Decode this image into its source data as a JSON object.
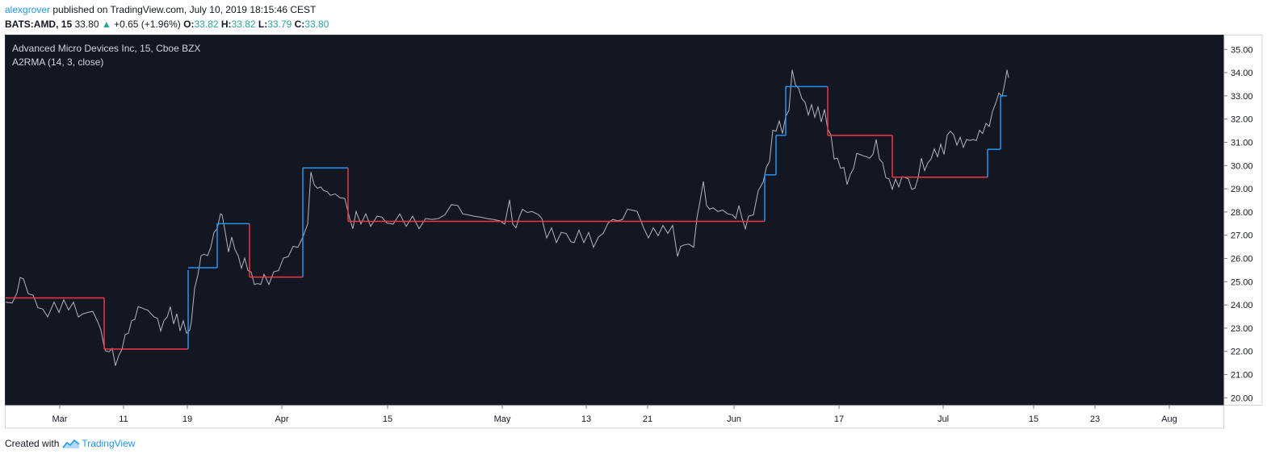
{
  "header": {
    "user": "alexgrover",
    "published": "published on TradingView.com, July 10, 2019 18:15:46 CEST"
  },
  "ticker": {
    "symbol": "BATS:AMD, 15",
    "last": "33.80",
    "change": "+0.65 (+1.96%)",
    "o_label": "O:",
    "o": "33.82",
    "h_label": "H:",
    "h": "33.82",
    "l_label": "L:",
    "l": "33.79",
    "c_label": "C:",
    "c": "33.80"
  },
  "chart_data": {
    "type": "line",
    "title": "Advanced Micro Devices Inc, 15, Cboe BZX",
    "indicator_label": "A2RMA (14, 3, close)",
    "ylim": [
      19.7,
      35.6
    ],
    "y_ticks": [
      "35.00",
      "34.00",
      "33.00",
      "32.00",
      "31.00",
      "30.00",
      "29.00",
      "28.00",
      "27.00",
      "26.00",
      "25.00",
      "24.00",
      "23.00",
      "22.00",
      "21.00",
      "20.00"
    ],
    "x_ticks": [
      "Mar",
      "11",
      "19",
      "Apr",
      "15",
      "May",
      "13",
      "21",
      "Jun",
      "17",
      "Jul",
      "15",
      "23",
      "Aug"
    ],
    "colors": {
      "background": "#131722",
      "price": "#b2b5be",
      "up": "#2196f3",
      "down": "#f23645",
      "up_text": "#26a69a"
    },
    "price_series": [
      [
        0,
        24.0
      ],
      [
        8,
        24.2
      ],
      [
        14,
        24.4
      ],
      [
        18,
        25.3
      ],
      [
        22,
        25.0
      ],
      [
        28,
        24.6
      ],
      [
        34,
        24.3
      ],
      [
        40,
        24.0
      ],
      [
        46,
        23.7
      ],
      [
        52,
        23.6
      ],
      [
        60,
        24.0
      ],
      [
        66,
        23.8
      ],
      [
        72,
        24.1
      ],
      [
        78,
        23.9
      ],
      [
        84,
        24.0
      ],
      [
        90,
        23.6
      ],
      [
        96,
        23.5
      ],
      [
        102,
        23.8
      ],
      [
        108,
        23.6
      ],
      [
        114,
        23.4
      ],
      [
        118,
        22.8
      ],
      [
        122,
        22.3
      ],
      [
        124,
        21.9
      ],
      [
        128,
        22.1
      ],
      [
        132,
        22.0
      ],
      [
        136,
        21.5
      ],
      [
        140,
        21.7
      ],
      [
        144,
        22.2
      ],
      [
        148,
        22.6
      ],
      [
        152,
        22.9
      ],
      [
        156,
        23.2
      ],
      [
        160,
        23.5
      ],
      [
        164,
        23.8
      ],
      [
        168,
        24.0
      ],
      [
        172,
        23.7
      ],
      [
        176,
        23.9
      ],
      [
        180,
        23.5
      ],
      [
        184,
        23.6
      ],
      [
        188,
        23.3
      ],
      [
        192,
        23.0
      ],
      [
        196,
        23.2
      ],
      [
        200,
        23.6
      ],
      [
        204,
        23.8
      ],
      [
        208,
        23.3
      ],
      [
        212,
        23.5
      ],
      [
        216,
        23.0
      ],
      [
        220,
        23.2
      ],
      [
        224,
        22.9
      ],
      [
        228,
        22.8
      ],
      [
        230,
        23.4
      ],
      [
        234,
        24.6
      ],
      [
        238,
        25.4
      ],
      [
        242,
        26.0
      ],
      [
        246,
        26.3
      ],
      [
        250,
        26.0
      ],
      [
        254,
        26.6
      ],
      [
        258,
        27.0
      ],
      [
        262,
        27.4
      ],
      [
        266,
        27.8
      ],
      [
        268,
        28.0
      ],
      [
        272,
        27.0
      ],
      [
        276,
        26.4
      ],
      [
        280,
        26.8
      ],
      [
        284,
        26.5
      ],
      [
        288,
        26.0
      ],
      [
        292,
        25.7
      ],
      [
        296,
        25.9
      ],
      [
        300,
        25.6
      ],
      [
        304,
        25.3
      ],
      [
        308,
        25.0
      ],
      [
        312,
        24.8
      ],
      [
        316,
        25.0
      ],
      [
        320,
        25.2
      ],
      [
        326,
        25.0
      ],
      [
        332,
        25.3
      ],
      [
        338,
        25.6
      ],
      [
        344,
        25.9
      ],
      [
        350,
        26.2
      ],
      [
        356,
        26.4
      ],
      [
        362,
        26.6
      ],
      [
        368,
        26.8
      ],
      [
        374,
        27.6
      ],
      [
        378,
        29.6
      ],
      [
        382,
        29.3
      ],
      [
        386,
        28.9
      ],
      [
        390,
        29.2
      ],
      [
        394,
        28.8
      ],
      [
        398,
        29.0
      ],
      [
        402,
        28.6
      ],
      [
        408,
        28.9
      ],
      [
        414,
        28.5
      ],
      [
        420,
        28.7
      ],
      [
        426,
        27.6
      ],
      [
        430,
        27.4
      ],
      [
        434,
        27.9
      ],
      [
        440,
        27.6
      ],
      [
        446,
        27.8
      ],
      [
        452,
        27.5
      ],
      [
        460,
        27.7
      ],
      [
        466,
        27.9
      ],
      [
        472,
        27.4
      ],
      [
        480,
        27.6
      ],
      [
        488,
        27.8
      ],
      [
        496,
        27.5
      ],
      [
        504,
        27.7
      ],
      [
        512,
        27.4
      ],
      [
        520,
        27.6
      ],
      [
        528,
        27.8
      ],
      [
        536,
        27.6
      ],
      [
        544,
        28.0
      ],
      [
        552,
        28.2
      ],
      [
        560,
        28.4
      ],
      [
        566,
        27.8
      ],
      [
        572,
        28.0
      ],
      [
        580,
        27.7
      ],
      [
        588,
        27.9
      ],
      [
        596,
        27.6
      ],
      [
        604,
        27.8
      ],
      [
        612,
        27.5
      ],
      [
        618,
        27.6
      ],
      [
        624,
        28.4
      ],
      [
        628,
        27.6
      ],
      [
        632,
        27.2
      ],
      [
        636,
        27.9
      ],
      [
        640,
        28.0
      ],
      [
        646,
        28.1
      ],
      [
        652,
        27.9
      ],
      [
        660,
        28.0
      ],
      [
        664,
        27.6
      ],
      [
        670,
        27.0
      ],
      [
        676,
        27.2
      ],
      [
        682,
        26.8
      ],
      [
        688,
        27.0
      ],
      [
        694,
        27.2
      ],
      [
        700,
        26.6
      ],
      [
        704,
        26.8
      ],
      [
        710,
        27.1
      ],
      [
        716,
        26.8
      ],
      [
        722,
        27.0
      ],
      [
        728,
        26.6
      ],
      [
        734,
        26.8
      ],
      [
        740,
        27.2
      ],
      [
        746,
        27.4
      ],
      [
        752,
        27.8
      ],
      [
        758,
        27.5
      ],
      [
        764,
        27.8
      ],
      [
        770,
        28.0
      ],
      [
        776,
        28.2
      ],
      [
        782,
        27.9
      ],
      [
        786,
        27.8
      ],
      [
        790,
        27.2
      ],
      [
        796,
        27.0
      ],
      [
        802,
        27.2
      ],
      [
        808,
        27.1
      ],
      [
        814,
        27.3
      ],
      [
        820,
        27.2
      ],
      [
        826,
        27.3
      ],
      [
        832,
        26.2
      ],
      [
        836,
        26.4
      ],
      [
        840,
        26.7
      ],
      [
        846,
        26.5
      ],
      [
        852,
        26.6
      ],
      [
        856,
        27.6
      ],
      [
        860,
        28.6
      ],
      [
        864,
        29.2
      ],
      [
        868,
        28.4
      ],
      [
        872,
        28.0
      ],
      [
        876,
        28.3
      ],
      [
        882,
        27.9
      ],
      [
        888,
        28.2
      ],
      [
        894,
        27.8
      ],
      [
        900,
        28.0
      ],
      [
        904,
        27.6
      ],
      [
        908,
        28.4
      ],
      [
        912,
        27.6
      ],
      [
        916,
        27.4
      ],
      [
        920,
        27.7
      ],
      [
        926,
        28.0
      ],
      [
        932,
        28.8
      ],
      [
        938,
        29.4
      ],
      [
        942,
        29.8
      ],
      [
        946,
        30.3
      ],
      [
        950,
        31.4
      ],
      [
        954,
        31.6
      ],
      [
        958,
        31.8
      ],
      [
        962,
        31.5
      ],
      [
        966,
        32.0
      ],
      [
        970,
        32.5
      ],
      [
        974,
        34.0
      ],
      [
        978,
        33.6
      ],
      [
        982,
        33.2
      ],
      [
        986,
        33.0
      ],
      [
        990,
        32.6
      ],
      [
        994,
        32.3
      ],
      [
        998,
        32.5
      ],
      [
        1002,
        32.2
      ],
      [
        1006,
        32.4
      ],
      [
        1010,
        32.0
      ],
      [
        1014,
        32.3
      ],
      [
        1018,
        31.7
      ],
      [
        1022,
        31.2
      ],
      [
        1026,
        30.4
      ],
      [
        1030,
        30.2
      ],
      [
        1034,
        30.0
      ],
      [
        1038,
        29.8
      ],
      [
        1042,
        29.3
      ],
      [
        1046,
        29.5
      ],
      [
        1050,
        30.0
      ],
      [
        1054,
        30.4
      ],
      [
        1058,
        30.6
      ],
      [
        1062,
        30.3
      ],
      [
        1066,
        30.5
      ],
      [
        1070,
        30.2
      ],
      [
        1074,
        30.6
      ],
      [
        1078,
        31.0
      ],
      [
        1082,
        30.4
      ],
      [
        1086,
        30.0
      ],
      [
        1090,
        29.6
      ],
      [
        1094,
        29.3
      ],
      [
        1098,
        29.1
      ],
      [
        1102,
        29.3
      ],
      [
        1106,
        29.2
      ],
      [
        1110,
        29.4
      ],
      [
        1114,
        29.6
      ],
      [
        1118,
        29.3
      ],
      [
        1122,
        29.1
      ],
      [
        1126,
        28.9
      ],
      [
        1130,
        29.6
      ],
      [
        1134,
        30.2
      ],
      [
        1138,
        29.9
      ],
      [
        1142,
        30.0
      ],
      [
        1146,
        30.4
      ],
      [
        1150,
        30.6
      ],
      [
        1154,
        30.5
      ],
      [
        1158,
        30.8
      ],
      [
        1162,
        30.6
      ],
      [
        1166,
        31.2
      ],
      [
        1170,
        31.6
      ],
      [
        1174,
        31.2
      ],
      [
        1178,
        31.0
      ],
      [
        1182,
        31.1
      ],
      [
        1186,
        30.9
      ],
      [
        1190,
        31.0
      ],
      [
        1194,
        31.2
      ],
      [
        1198,
        31.0
      ],
      [
        1202,
        31.2
      ],
      [
        1206,
        31.4
      ],
      [
        1210,
        31.5
      ],
      [
        1214,
        31.7
      ],
      [
        1218,
        31.8
      ],
      [
        1222,
        32.2
      ],
      [
        1226,
        32.8
      ],
      [
        1230,
        33.0
      ],
      [
        1234,
        33.1
      ],
      [
        1236,
        33.2
      ],
      [
        1238,
        33.8
      ],
      [
        1240,
        34.0
      ],
      [
        1242,
        33.9
      ]
    ],
    "a2rma_segments": [
      {
        "x0": 0,
        "x1": 122,
        "y": 24.3,
        "dir": "down"
      },
      {
        "x0": 122,
        "x1": 226,
        "y": 22.1,
        "dir": "down"
      },
      {
        "x0": 226,
        "x1": 226,
        "y0": 22.1,
        "y1": 25.5,
        "dir": "up",
        "vertical": true
      },
      {
        "x0": 226,
        "x1": 262,
        "y": 25.6,
        "dir": "up"
      },
      {
        "x0": 262,
        "x1": 262,
        "y0": 25.6,
        "y1": 27.5,
        "dir": "up",
        "vertical": true
      },
      {
        "x0": 262,
        "x1": 302,
        "y": 27.5,
        "dir": "up"
      },
      {
        "x0": 302,
        "x1": 368,
        "y": 25.2,
        "dir": "down"
      },
      {
        "x0": 368,
        "x1": 368,
        "y0": 25.2,
        "y1": 29.9,
        "dir": "up",
        "vertical": true
      },
      {
        "x0": 368,
        "x1": 424,
        "y": 29.9,
        "dir": "up"
      },
      {
        "x0": 424,
        "x1": 940,
        "y": 27.6,
        "dir": "down"
      },
      {
        "x0": 940,
        "x1": 940,
        "y0": 27.6,
        "y1": 29.6,
        "dir": "up",
        "vertical": true
      },
      {
        "x0": 940,
        "x1": 954,
        "y": 29.6,
        "dir": "up"
      },
      {
        "x0": 954,
        "x1": 954,
        "y0": 29.6,
        "y1": 31.3,
        "dir": "up",
        "vertical": true
      },
      {
        "x0": 954,
        "x1": 966,
        "y": 31.3,
        "dir": "up"
      },
      {
        "x0": 966,
        "x1": 966,
        "y0": 31.3,
        "y1": 33.4,
        "dir": "up",
        "vertical": true
      },
      {
        "x0": 966,
        "x1": 1018,
        "y": 33.4,
        "dir": "up"
      },
      {
        "x0": 1018,
        "x1": 1098,
        "y": 31.3,
        "dir": "down"
      },
      {
        "x0": 1098,
        "x1": 1216,
        "y": 29.5,
        "dir": "down"
      },
      {
        "x0": 1216,
        "x1": 1216,
        "y0": 29.5,
        "y1": 30.7,
        "dir": "up",
        "vertical": true
      },
      {
        "x0": 1216,
        "x1": 1232,
        "y": 30.7,
        "dir": "up"
      },
      {
        "x0": 1232,
        "x1": 1232,
        "y0": 30.7,
        "y1": 33.0,
        "dir": "up",
        "vertical": true
      },
      {
        "x0": 1232,
        "x1": 1240,
        "y": 33.0,
        "dir": "up"
      }
    ]
  },
  "footer": {
    "created_with": "Created with",
    "brand": "TradingView"
  }
}
